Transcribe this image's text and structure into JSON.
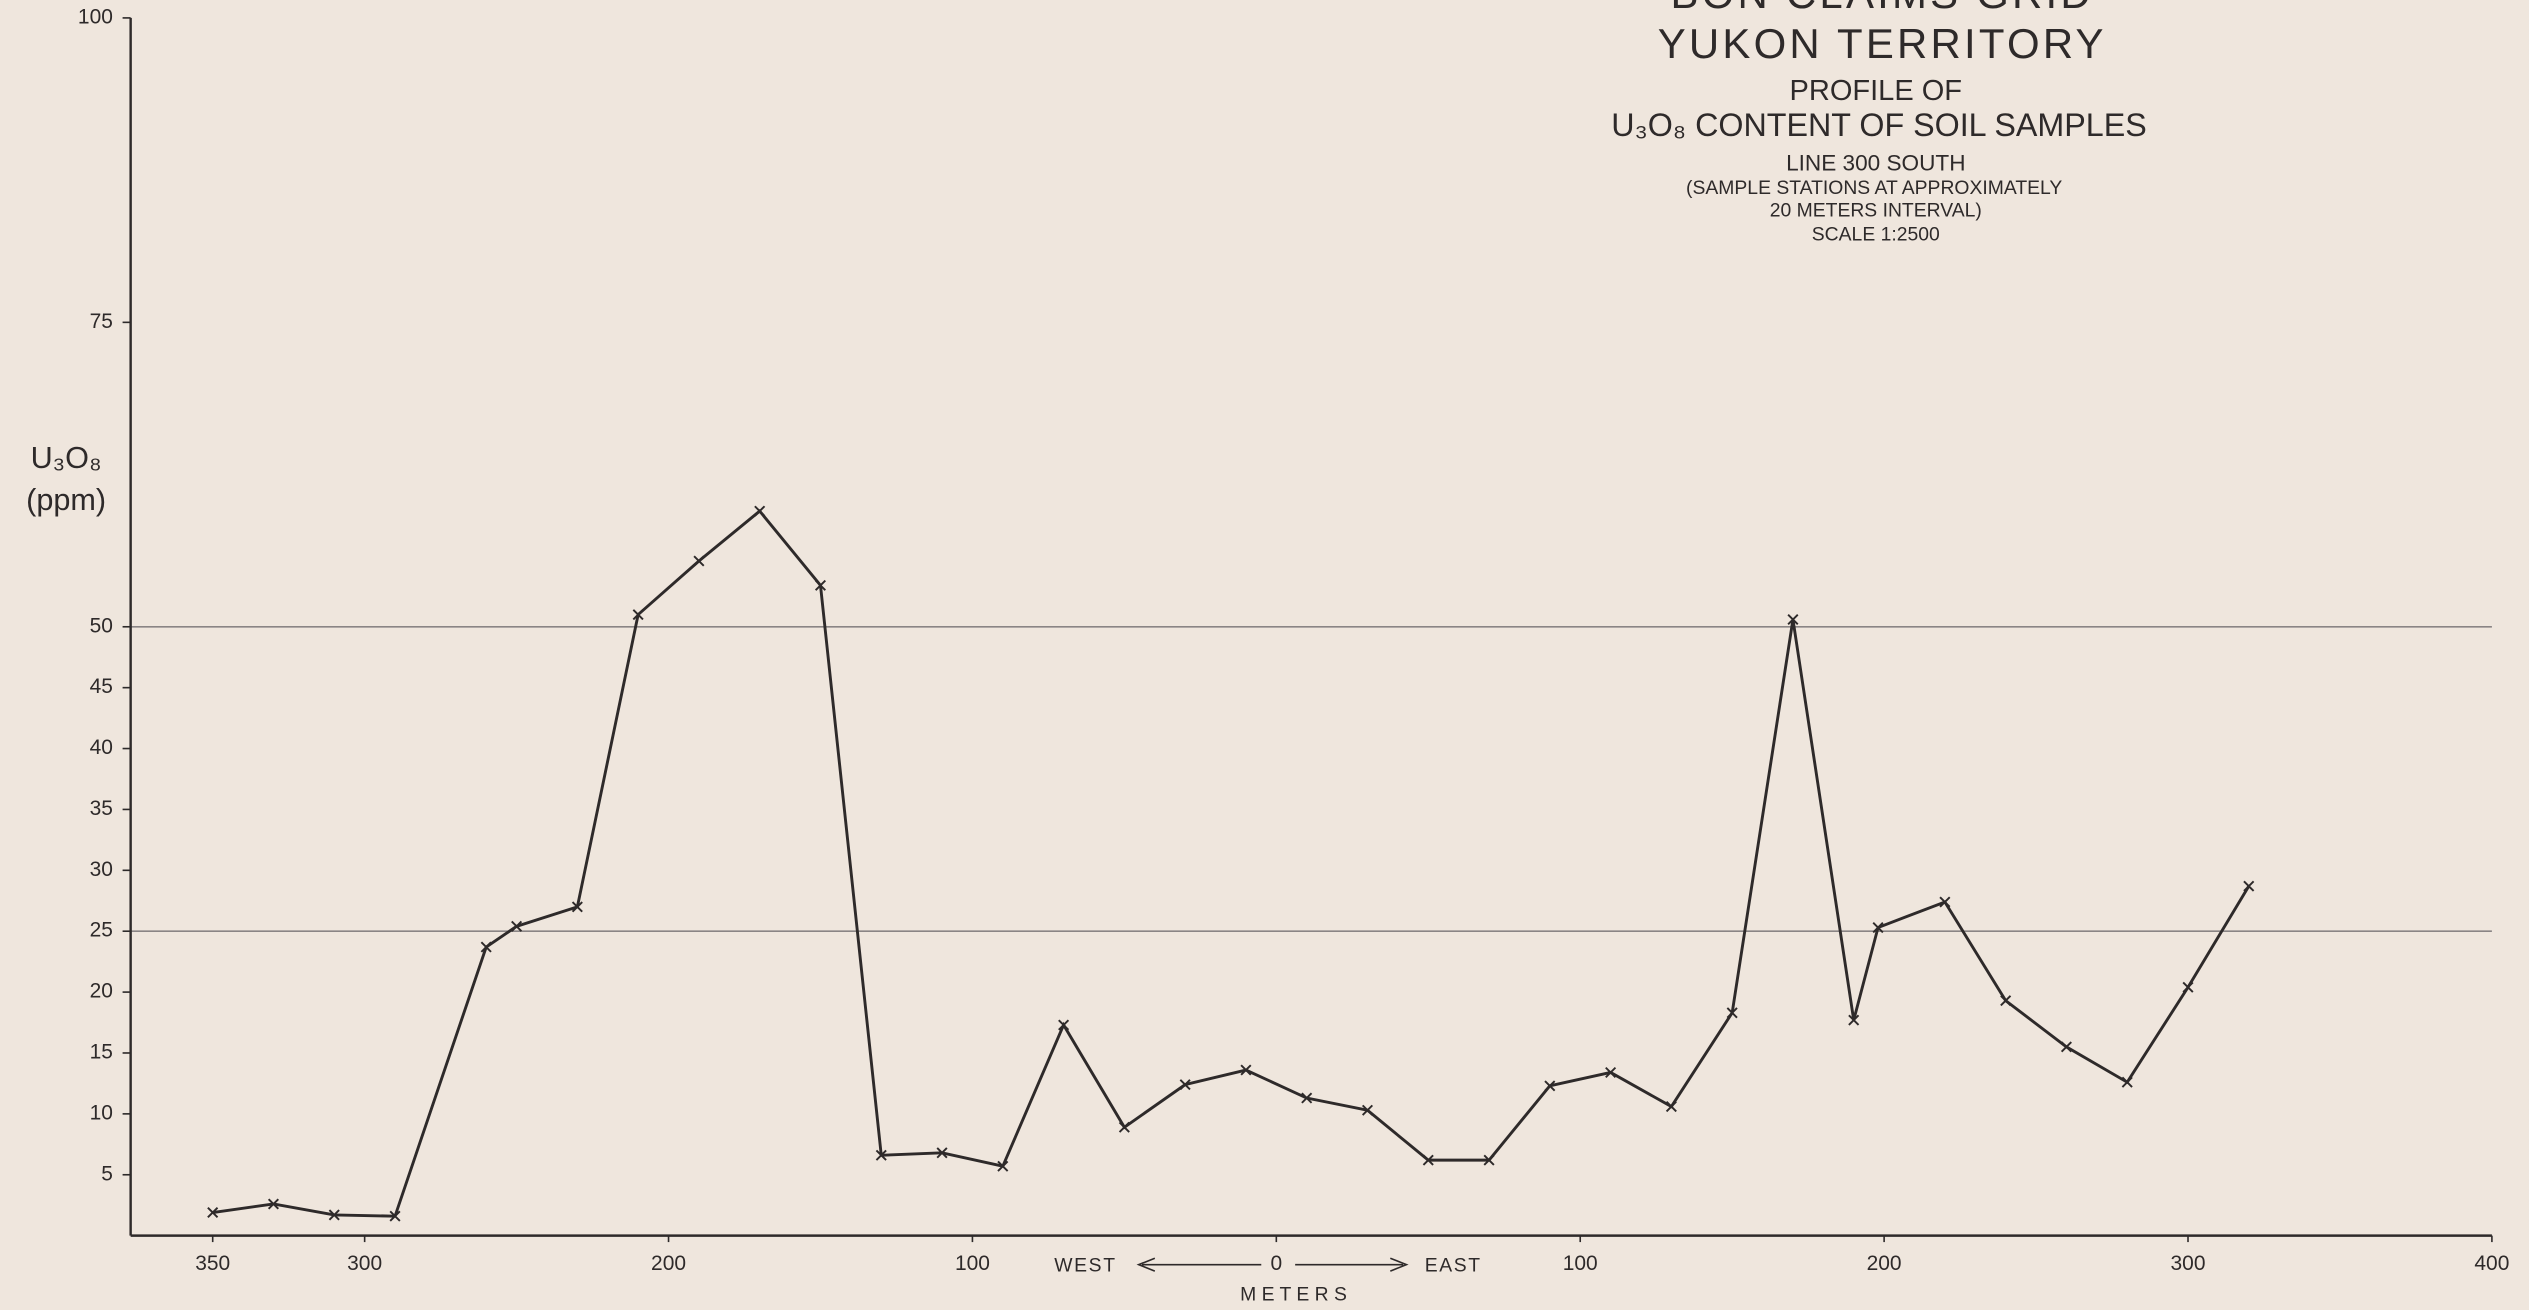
{
  "chart_data": {
    "type": "line",
    "title": "BON CLAIMS GRID",
    "subtitle": [
      "YUKON TERRITORY",
      "PROFILE OF",
      "U₃O₈ CONTENT OF SOIL SAMPLES",
      "LINE 300 SOUTH",
      "(SAMPLE STATIONS AT APPROXIMATELY",
      "20 METERS INTERVAL)",
      "SCALE 1:2500"
    ],
    "y_label": [
      "U₃O₈",
      "(ppm)"
    ],
    "x_label": "M E T E R S",
    "x_annotations": {
      "west": "WEST",
      "east": "EAST"
    },
    "x": [
      -350,
      -330,
      -310,
      -290,
      -260,
      -250,
      -230,
      -210,
      -190,
      -170,
      -150,
      -130,
      -110,
      -90,
      -70,
      -50,
      -30,
      -10,
      10,
      30,
      50,
      70,
      90,
      110,
      130,
      150,
      170,
      190,
      198,
      220,
      240,
      260,
      280,
      300,
      320
    ],
    "series": [
      {
        "name": "U₃O₈",
        "color": "#2e2a2a",
        "values": [
          1.9,
          2.6,
          1.7,
          1.6,
          23.7,
          25.4,
          27,
          51,
          55.4,
          59.5,
          53.4,
          6.6,
          6.8,
          5.7,
          17.3,
          8.9,
          12.4,
          13.6,
          11.3,
          10.3,
          6.2,
          6.2,
          12.3,
          13.4,
          10.6,
          18.3,
          50.6,
          17.7,
          25.3,
          27.4,
          19.3,
          15.5,
          12.6,
          20.4,
          28.7
        ]
      }
    ],
    "xlim": [
      -377,
      400
    ],
    "ylim": [
      0,
      100
    ],
    "xticks": [
      {
        "value": -350,
        "label": "350"
      },
      {
        "value": -300,
        "label": "300"
      },
      {
        "value": -200,
        "label": "200"
      },
      {
        "value": -100,
        "label": "100"
      },
      0,
      100,
      200,
      300,
      400
    ],
    "yticks": [
      5,
      10,
      15,
      20,
      25,
      30,
      35,
      40,
      45,
      50,
      75,
      100
    ],
    "hlines": [
      25,
      50
    ]
  }
}
